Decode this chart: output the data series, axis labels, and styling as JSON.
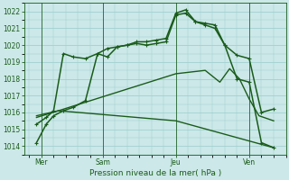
{
  "bg_color": "#cce8e8",
  "grid_color": "#99cccc",
  "line_color": "#1a5c1a",
  "xlabel": "Pression niveau de la mer( hPa )",
  "ylim": [
    1013.5,
    1022.5
  ],
  "yticks": [
    1014,
    1015,
    1016,
    1017,
    1018,
    1019,
    1020,
    1021,
    1022
  ],
  "xlim": [
    -0.2,
    10.5
  ],
  "xtick_labels": [
    "Mer",
    "Sam",
    "Jeu",
    "Ven"
  ],
  "xtick_positions": [
    0.5,
    3.0,
    6.0,
    9.0
  ],
  "vlines": [
    0.5,
    3.0,
    6.0,
    9.0
  ],
  "series": [
    {
      "x": [
        0.3,
        0.7,
        1.0,
        1.4,
        1.8,
        2.3,
        2.8,
        3.2,
        3.6,
        4.0,
        4.4,
        4.8,
        5.2,
        5.6,
        6.0,
        6.4,
        6.8,
        7.2,
        7.6,
        8.0,
        8.5,
        9.0,
        9.5,
        10.0
      ],
      "y": [
        1015.3,
        1015.7,
        1016.1,
        1019.5,
        1019.3,
        1019.2,
        1019.5,
        1019.8,
        1019.9,
        1020.0,
        1020.2,
        1020.2,
        1020.3,
        1020.4,
        1021.9,
        1022.1,
        1021.4,
        1021.3,
        1021.2,
        1020.0,
        1019.4,
        1019.2,
        1016.0,
        1016.2
      ],
      "marker": "+",
      "linewidth": 1.1,
      "markersize": 3.5
    },
    {
      "x": [
        0.3,
        0.7,
        1.0,
        1.4,
        1.8,
        2.3,
        2.8,
        3.2,
        3.6,
        4.0,
        4.4,
        4.8,
        5.2,
        5.6,
        6.0,
        6.4,
        6.8,
        7.2,
        7.6,
        8.0,
        8.5,
        9.0,
        9.5,
        10.0
      ],
      "y": [
        1014.2,
        1015.3,
        1015.8,
        1016.1,
        1016.3,
        1016.7,
        1019.5,
        1019.3,
        1019.9,
        1020.0,
        1020.1,
        1020.0,
        1020.1,
        1020.2,
        1021.8,
        1021.9,
        1021.4,
        1021.2,
        1021.0,
        1020.0,
        1018.0,
        1017.8,
        1014.2,
        1013.9
      ],
      "marker": "+",
      "linewidth": 1.1,
      "markersize": 3.5
    },
    {
      "x": [
        0.3,
        1.2,
        6.0,
        7.2,
        7.8,
        8.2,
        8.6,
        9.0,
        9.4,
        10.0
      ],
      "y": [
        1015.7,
        1016.1,
        1018.3,
        1018.5,
        1017.8,
        1018.6,
        1018.0,
        1016.8,
        1015.8,
        1015.5
      ],
      "marker": "",
      "linewidth": 1.0,
      "markersize": 0
    },
    {
      "x": [
        0.3,
        1.2,
        6.0,
        10.0
      ],
      "y": [
        1015.8,
        1016.1,
        1015.5,
        1013.9
      ],
      "marker": "",
      "linewidth": 1.0,
      "markersize": 0
    }
  ]
}
